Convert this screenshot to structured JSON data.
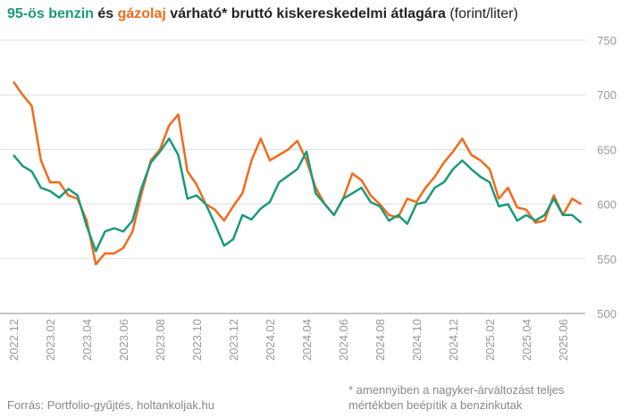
{
  "chart_data": {
    "type": "line",
    "title": {
      "connector": "és",
      "text": "várható* bruttó kiskereskedelmi átlagára",
      "unit": "(forint/liter)"
    },
    "source": "Forrás: Portfolio-gyűjtés, holtankoljak.hu",
    "footnote": "* amennyiben a nagyker-árváltozást teljes mértékben beépítik a benzinkutak",
    "categories": [
      "2022.12",
      null,
      null,
      null,
      "2023.02",
      null,
      null,
      null,
      "2023.04",
      null,
      null,
      null,
      "2023.06",
      null,
      null,
      null,
      "2023.08",
      null,
      null,
      null,
      "2023.10",
      null,
      null,
      null,
      "2023.12",
      null,
      null,
      null,
      "2024.02",
      null,
      null,
      null,
      "2024.04",
      null,
      null,
      null,
      "2024.06",
      null,
      null,
      null,
      "2024.08",
      null,
      null,
      null,
      "2024.10",
      null,
      null,
      null,
      "2024.12",
      null,
      null,
      null,
      "2025.02",
      null,
      null,
      null,
      "2025.04",
      null,
      null,
      null,
      "2025.06",
      null,
      null
    ],
    "series": [
      {
        "name": "95-ös benzin",
        "color": "#1a9a7a",
        "values": [
          645,
          635,
          630,
          615,
          612,
          606,
          614,
          608,
          580,
          557,
          575,
          578,
          575,
          585,
          615,
          638,
          648,
          660,
          645,
          605,
          608,
          600,
          582,
          562,
          568,
          590,
          586,
          596,
          602,
          620,
          626,
          632,
          648,
          610,
          600,
          590,
          605,
          610,
          615,
          602,
          598,
          585,
          590,
          582,
          600,
          602,
          615,
          620,
          632,
          640,
          632,
          625,
          620,
          598,
          600,
          585,
          590,
          585,
          590,
          605,
          590,
          590,
          583
        ]
      },
      {
        "name": "gázolaj",
        "color": "#f26a1b",
        "values": [
          712,
          700,
          690,
          640,
          620,
          620,
          608,
          605,
          585,
          545,
          555,
          555,
          560,
          575,
          610,
          640,
          650,
          672,
          682,
          630,
          618,
          600,
          595,
          585,
          598,
          610,
          640,
          660,
          640,
          645,
          650,
          658,
          640,
          615,
          600,
          590,
          605,
          628,
          622,
          608,
          600,
          590,
          588,
          605,
          602,
          615,
          625,
          638,
          648,
          660,
          645,
          640,
          632,
          605,
          615,
          597,
          595,
          583,
          585,
          608,
          590,
          605,
          600
        ]
      }
    ],
    "ylim": [
      500,
      750
    ],
    "yticks": [
      500,
      550,
      600,
      650,
      700,
      750
    ],
    "grid": true
  }
}
